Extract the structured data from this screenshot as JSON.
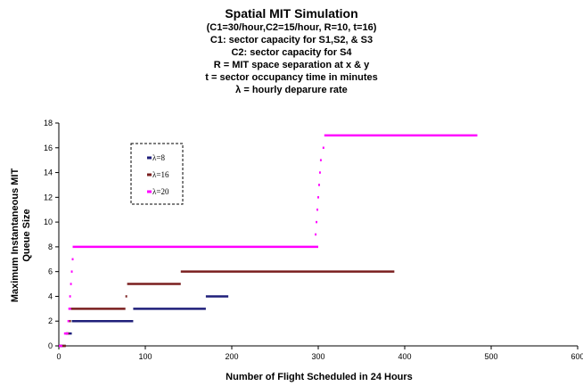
{
  "chart_data": {
    "type": "scatter",
    "title": "Spatial MIT Simulation",
    "subtitle_lines": [
      "(C1=30/hour,C2=15/hour, R=10, t=16)",
      "C1: sector capacity for S1,S2, & S3",
      "C2: sector capacity for S4",
      "R = MIT space separation at x & y",
      "t = sector occupancy time in minutes",
      "λ = hourly deparure rate"
    ],
    "xlabel": "Number of Flight Scheduled in 24 Hours",
    "ylabel_lines": [
      "Maximum Instantaneous MIT",
      "Queue Size"
    ],
    "xlim": [
      0,
      600
    ],
    "ylim": [
      0,
      18
    ],
    "x_ticks": [
      "0",
      "100",
      "200",
      "300",
      "400",
      "500",
      "600"
    ],
    "y_ticks": [
      "0",
      "2",
      "4",
      "6",
      "8",
      "10",
      "12",
      "14",
      "16",
      "18"
    ],
    "legend_position": "upper-left, inside plot, dashed border",
    "series": [
      {
        "name": "λ=8",
        "color": "#1F1F7A",
        "segments": [
          [
            0,
            0,
            8,
            0
          ],
          [
            8,
            1,
            15,
            1
          ],
          [
            15,
            2,
            86,
            2
          ],
          [
            86,
            3,
            170,
            3
          ],
          [
            170,
            4,
            196,
            4
          ]
        ]
      },
      {
        "name": "λ=16",
        "color": "#7A1F1F",
        "segments": [
          [
            0,
            0,
            8,
            0
          ],
          [
            8,
            1,
            12,
            1
          ],
          [
            12,
            2,
            14,
            2
          ],
          [
            14,
            3,
            77,
            3
          ],
          [
            77,
            4,
            79,
            4
          ],
          [
            79,
            5,
            141,
            5
          ],
          [
            141,
            6,
            388,
            6
          ]
        ]
      },
      {
        "name": "λ=20",
        "color": "#FF00FF",
        "segments": [
          [
            0,
            0,
            4,
            0
          ],
          [
            6,
            1,
            11,
            1
          ],
          [
            10,
            2,
            12,
            2
          ],
          [
            11,
            3,
            14,
            3
          ],
          [
            12,
            4,
            14,
            4
          ],
          [
            13,
            5,
            15,
            5
          ],
          [
            14,
            6,
            16,
            6
          ],
          [
            15,
            7,
            17,
            7
          ],
          [
            16,
            8,
            300,
            8
          ],
          [
            296,
            9,
            298,
            9
          ],
          [
            297,
            10,
            299,
            10
          ],
          [
            298,
            11,
            300,
            11
          ],
          [
            299,
            12,
            301,
            12
          ],
          [
            300,
            13,
            302,
            13
          ],
          [
            301,
            14,
            303,
            14
          ],
          [
            302,
            15,
            304,
            15
          ],
          [
            305,
            16,
            307,
            16
          ],
          [
            307,
            17,
            484,
            17
          ]
        ]
      }
    ]
  }
}
